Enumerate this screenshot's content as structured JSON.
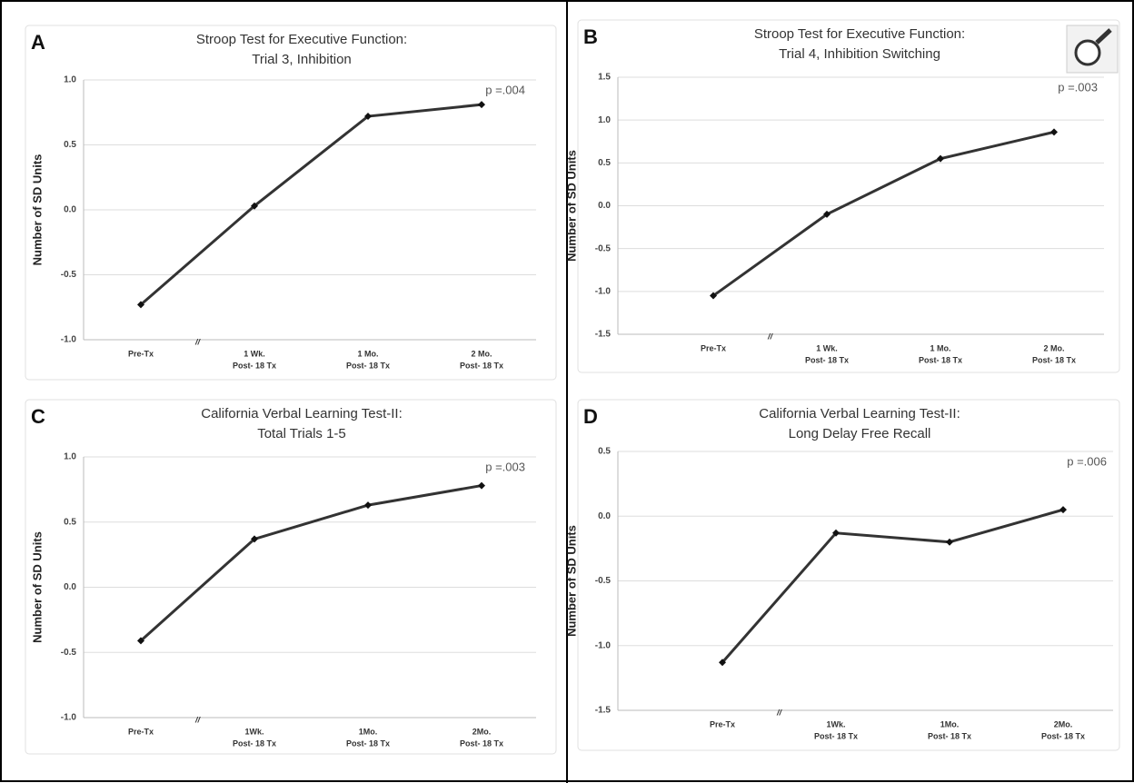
{
  "chart_data": [
    {
      "type": "line",
      "panel": "A",
      "title": [
        "Stroop Test for Executive Function:",
        "Trial 3, Inhibition"
      ],
      "ylabel": "Number of SD Units",
      "categories": [
        [
          "Pre-Tx"
        ],
        [
          "1 Wk.",
          "Post- 18 Tx"
        ],
        [
          "1 Mo.",
          "Post- 18 Tx"
        ],
        [
          "2 Mo.",
          "Post- 18 Tx"
        ]
      ],
      "values": [
        -0.73,
        0.03,
        0.72,
        0.81
      ],
      "color": "#333333",
      "ylim": [
        -1,
        1
      ],
      "yticks": [
        {
          "value": -1,
          "label": "-1.0"
        },
        -0.5,
        {
          "value": 0,
          "label": "0.0"
        },
        0.5,
        {
          "value": 1,
          "label": "1.0"
        }
      ],
      "grid": true,
      "annotation": "p =.004",
      "axis_break": "//"
    },
    {
      "type": "line",
      "panel": "B",
      "title": [
        "Stroop Test for Executive Function:",
        "Trial 4, Inhibition Switching"
      ],
      "ylabel": "Number of SD Units",
      "categories": [
        [
          "Pre-Tx"
        ],
        [
          "1 Wk.",
          "Post- 18 Tx"
        ],
        [
          "1 Mo.",
          "Post- 18 Tx"
        ],
        [
          "2 Mo.",
          "Post- 18 Tx"
        ]
      ],
      "values": [
        -1.05,
        -0.1,
        0.55,
        0.86
      ],
      "color": "#333333",
      "ylim": [
        -1.5,
        1.5
      ],
      "yticks": [
        -1.5,
        {
          "value": -1,
          "label": "-1.0"
        },
        -0.5,
        {
          "value": 0,
          "label": "0.0"
        },
        0.5,
        {
          "value": 1,
          "label": "1.0"
        },
        1.5
      ],
      "grid": true,
      "annotation": "p =.003",
      "axis_break": "//"
    },
    {
      "type": "line",
      "panel": "C",
      "title": [
        "California Verbal Learning Test-II:",
        "Total Trials 1-5"
      ],
      "ylabel": "Number of SD Units",
      "categories": [
        [
          "Pre-Tx"
        ],
        [
          "1Wk.",
          "Post- 18 Tx"
        ],
        [
          "1Mo.",
          "Post- 18 Tx"
        ],
        [
          "2Mo.",
          "Post- 18 Tx"
        ]
      ],
      "values": [
        -0.41,
        0.37,
        0.63,
        0.78
      ],
      "color": "#333333",
      "ylim": [
        -1,
        1
      ],
      "yticks": [
        {
          "value": -1,
          "label": "-1.0"
        },
        -0.5,
        {
          "value": 0,
          "label": "0.0"
        },
        0.5,
        {
          "value": 1,
          "label": "1.0"
        }
      ],
      "grid": true,
      "annotation": "p =.003",
      "axis_break": "//"
    },
    {
      "type": "line",
      "panel": "D",
      "title": [
        "California Verbal Learning Test-II:",
        "Long Delay Free Recall"
      ],
      "ylabel": "Number of SD Units",
      "categories": [
        [
          "Pre-Tx"
        ],
        [
          "1Wk.",
          "Post- 18 Tx"
        ],
        [
          "1Mo.",
          "Post- 18 Tx"
        ],
        [
          "2Mo.",
          "Post- 18 Tx"
        ]
      ],
      "values": [
        -1.13,
        -0.13,
        -0.2,
        0.05
      ],
      "color": "#333333",
      "ylim": [
        -1.5,
        0.5
      ],
      "yticks": [
        -1.5,
        {
          "value": -1,
          "label": "-1.0"
        },
        -0.5,
        {
          "value": 0,
          "label": "0.0"
        },
        0.5
      ],
      "grid": true,
      "annotation": "p =.006",
      "axis_break": "//"
    }
  ]
}
